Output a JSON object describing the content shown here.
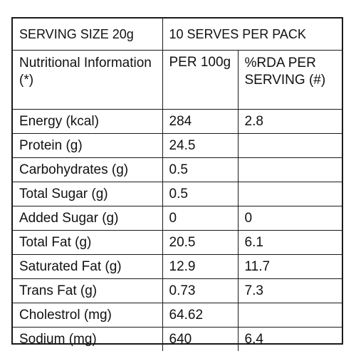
{
  "header": {
    "serving_size": "SERVING SIZE  20g",
    "serves_per_pack": "10 SERVES PER PACK"
  },
  "columns": {
    "nutrient": "Nutritional Information (*)",
    "per_100g": "PER 100g",
    "rda": "%RDA PER SERVING (#)"
  },
  "rows": [
    {
      "name": "Energy (kcal)",
      "per_100g": "284",
      "rda": "2.8"
    },
    {
      "name": "Protein (g)",
      "per_100g": "24.5",
      "rda": ""
    },
    {
      "name": "Carbohydrates (g)",
      "per_100g": "0.5",
      "rda": ""
    },
    {
      "name": "Total Sugar (g)",
      "per_100g": "0.5",
      "rda": ""
    },
    {
      "name": "Added Sugar (g)",
      "per_100g": "0",
      "rda": "0"
    },
    {
      "name": "Total Fat (g)",
      "per_100g": "20.5",
      "rda": "6.1"
    },
    {
      "name": "Saturated Fat (g)",
      "per_100g": "12.9",
      "rda": "11.7"
    },
    {
      "name": "Trans Fat (g)",
      "per_100g": "0.73",
      "rda": "7.3"
    },
    {
      "name": "Cholestrol (mg)",
      "per_100g": "64.62",
      "rda": ""
    },
    {
      "name": "Sodium (mg)",
      "per_100g": "640",
      "rda": "6.4"
    }
  ]
}
